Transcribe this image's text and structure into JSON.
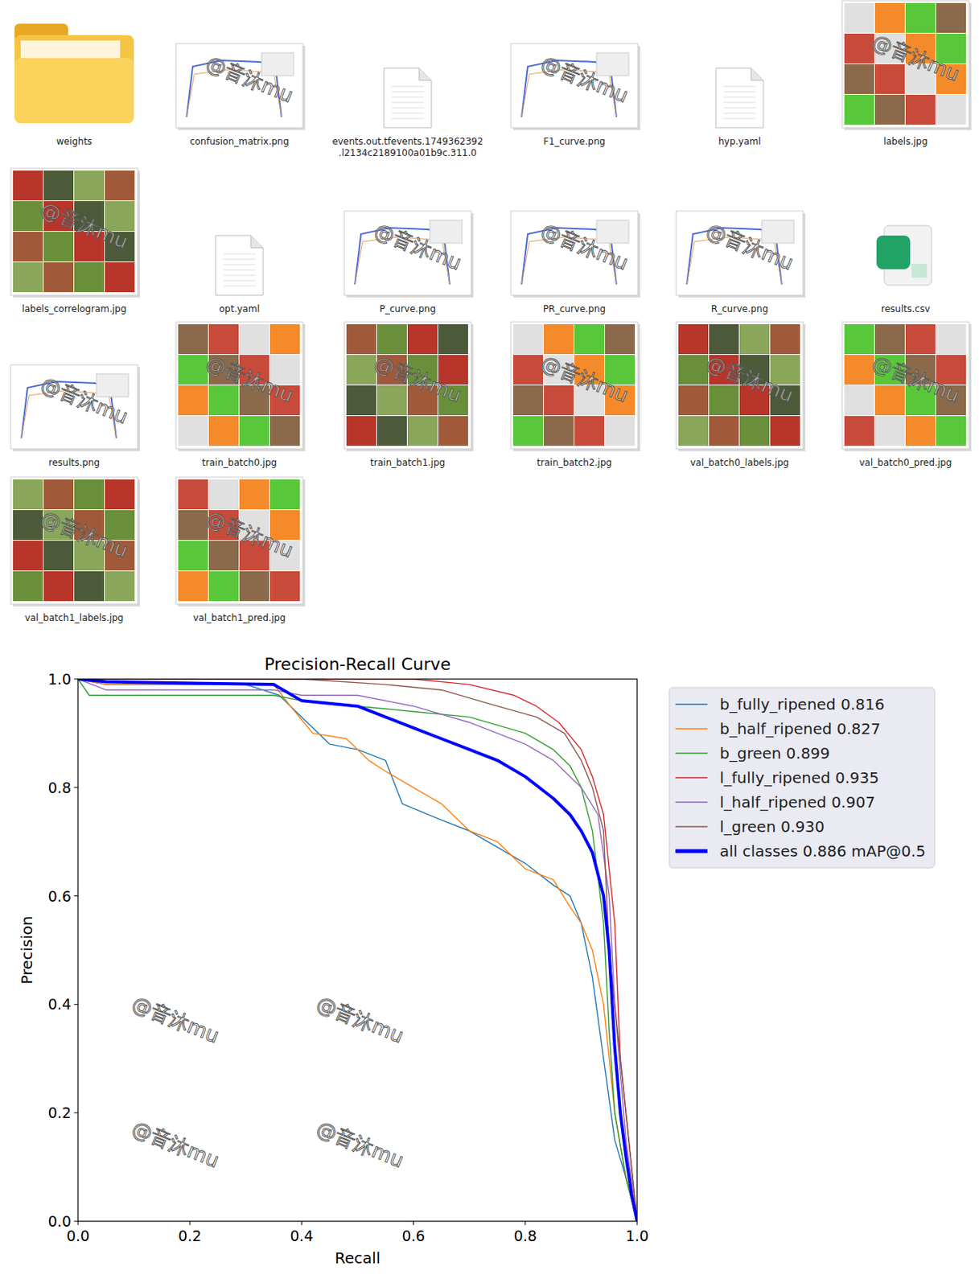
{
  "files": [
    "weights",
    "confusion_matrix.png",
    "events.out.tfevents.1749362392.l2134c2189100a01b9c.311.0",
    "F1_curve.png",
    "hyp.yaml",
    "labels.jpg",
    "labels_correlogram.jpg",
    "opt.yaml",
    "P_curve.png",
    "PR_curve.png",
    "R_curve.png",
    "results.csv",
    "results.png",
    "train_batch0.jpg",
    "train_batch1.jpg",
    "train_batch2.jpg",
    "val_batch0_labels.jpg",
    "val_batch0_pred.jpg",
    "val_batch1_labels.jpg",
    "val_batch1_pred.jpg"
  ],
  "watermark": "@音沐mu",
  "chart_data": {
    "type": "line",
    "title": "Precision-Recall Curve",
    "x_label": "Recall",
    "y_label": "Precision",
    "xlim": [
      0,
      1
    ],
    "ylim": [
      0,
      1
    ],
    "xticks": [
      {
        "value": 0,
        "label": "0.0"
      },
      0.2,
      0.4,
      0.6,
      0.8,
      {
        "value": 1,
        "label": "1.0"
      }
    ],
    "yticks": [
      {
        "value": 0,
        "label": "0.0"
      },
      0.2,
      0.4,
      0.6,
      0.8,
      {
        "value": 1,
        "label": "1.0"
      }
    ],
    "grid": false,
    "legend": "right",
    "series": [
      {
        "name": "b_fully_ripened 0.816",
        "color": "#1f77b4",
        "line_style": "solid",
        "x": [
          0,
          0.05,
          0.3,
          0.36,
          0.4,
          0.45,
          0.5,
          0.55,
          0.58,
          0.65,
          0.7,
          0.75,
          0.8,
          0.85,
          0.88,
          0.9,
          0.92,
          0.94,
          0.96,
          0.98,
          1.0
        ],
        "values": [
          1.0,
          0.99,
          0.99,
          0.97,
          0.93,
          0.88,
          0.87,
          0.85,
          0.77,
          0.74,
          0.72,
          0.69,
          0.66,
          0.62,
          0.6,
          0.55,
          0.45,
          0.3,
          0.15,
          0.08,
          0.0
        ]
      },
      {
        "name": "b_half_ripened 0.827",
        "color": "#ff7f0e",
        "line_style": "solid",
        "x": [
          0,
          0.05,
          0.35,
          0.38,
          0.42,
          0.48,
          0.52,
          0.55,
          0.6,
          0.65,
          0.7,
          0.75,
          0.8,
          0.85,
          0.88,
          0.9,
          0.92,
          0.94,
          0.96,
          0.98,
          1.0
        ],
        "values": [
          1.0,
          0.99,
          0.99,
          0.95,
          0.9,
          0.89,
          0.85,
          0.83,
          0.8,
          0.77,
          0.72,
          0.7,
          0.65,
          0.63,
          0.58,
          0.55,
          0.5,
          0.4,
          0.2,
          0.08,
          0.0
        ]
      },
      {
        "name": "b_green 0.899",
        "color": "#2ca02c",
        "line_style": "solid",
        "x": [
          0,
          0.02,
          0.35,
          0.4,
          0.5,
          0.6,
          0.7,
          0.8,
          0.85,
          0.88,
          0.9,
          0.92,
          0.94,
          0.95,
          0.96,
          0.98,
          1.0
        ],
        "values": [
          1.0,
          0.97,
          0.97,
          0.96,
          0.95,
          0.94,
          0.93,
          0.9,
          0.87,
          0.84,
          0.8,
          0.72,
          0.55,
          0.35,
          0.2,
          0.08,
          0.0
        ]
      },
      {
        "name": "l_fully_ripened 0.935",
        "color": "#d62728",
        "line_style": "solid",
        "x": [
          0,
          0.4,
          0.6,
          0.7,
          0.78,
          0.82,
          0.86,
          0.9,
          0.92,
          0.94,
          0.96,
          0.97,
          0.99,
          1.0
        ],
        "values": [
          1.0,
          1.0,
          1.0,
          0.99,
          0.97,
          0.95,
          0.92,
          0.87,
          0.82,
          0.75,
          0.55,
          0.3,
          0.1,
          0.0
        ]
      },
      {
        "name": "l_half_ripened 0.907",
        "color": "#9467bd",
        "line_style": "solid",
        "x": [
          0,
          0.05,
          0.35,
          0.4,
          0.5,
          0.6,
          0.7,
          0.8,
          0.85,
          0.9,
          0.93,
          0.95,
          0.96,
          0.98,
          1.0
        ],
        "values": [
          1.0,
          0.98,
          0.98,
          0.97,
          0.97,
          0.95,
          0.92,
          0.88,
          0.85,
          0.8,
          0.75,
          0.6,
          0.4,
          0.15,
          0.0
        ]
      },
      {
        "name": "l_green 0.930",
        "color": "#8c564b",
        "line_style": "solid",
        "x": [
          0,
          0.4,
          0.55,
          0.65,
          0.75,
          0.82,
          0.87,
          0.9,
          0.92,
          0.94,
          0.95,
          0.97,
          0.99,
          1.0
        ],
        "values": [
          1.0,
          1.0,
          0.99,
          0.98,
          0.95,
          0.93,
          0.9,
          0.85,
          0.8,
          0.72,
          0.5,
          0.3,
          0.1,
          0.0
        ]
      },
      {
        "name": "all classes 0.886 mAP@0.5",
        "color": "#0000ff",
        "line_style": "thick",
        "x": [
          0,
          0.05,
          0.35,
          0.4,
          0.5,
          0.55,
          0.6,
          0.65,
          0.7,
          0.75,
          0.8,
          0.85,
          0.88,
          0.9,
          0.92,
          0.94,
          0.95,
          0.96,
          0.97,
          0.98,
          0.99,
          1.0
        ],
        "values": [
          1.0,
          0.995,
          0.99,
          0.96,
          0.95,
          0.93,
          0.91,
          0.89,
          0.87,
          0.85,
          0.82,
          0.78,
          0.75,
          0.72,
          0.68,
          0.6,
          0.5,
          0.32,
          0.2,
          0.12,
          0.05,
          0.0
        ]
      }
    ]
  }
}
